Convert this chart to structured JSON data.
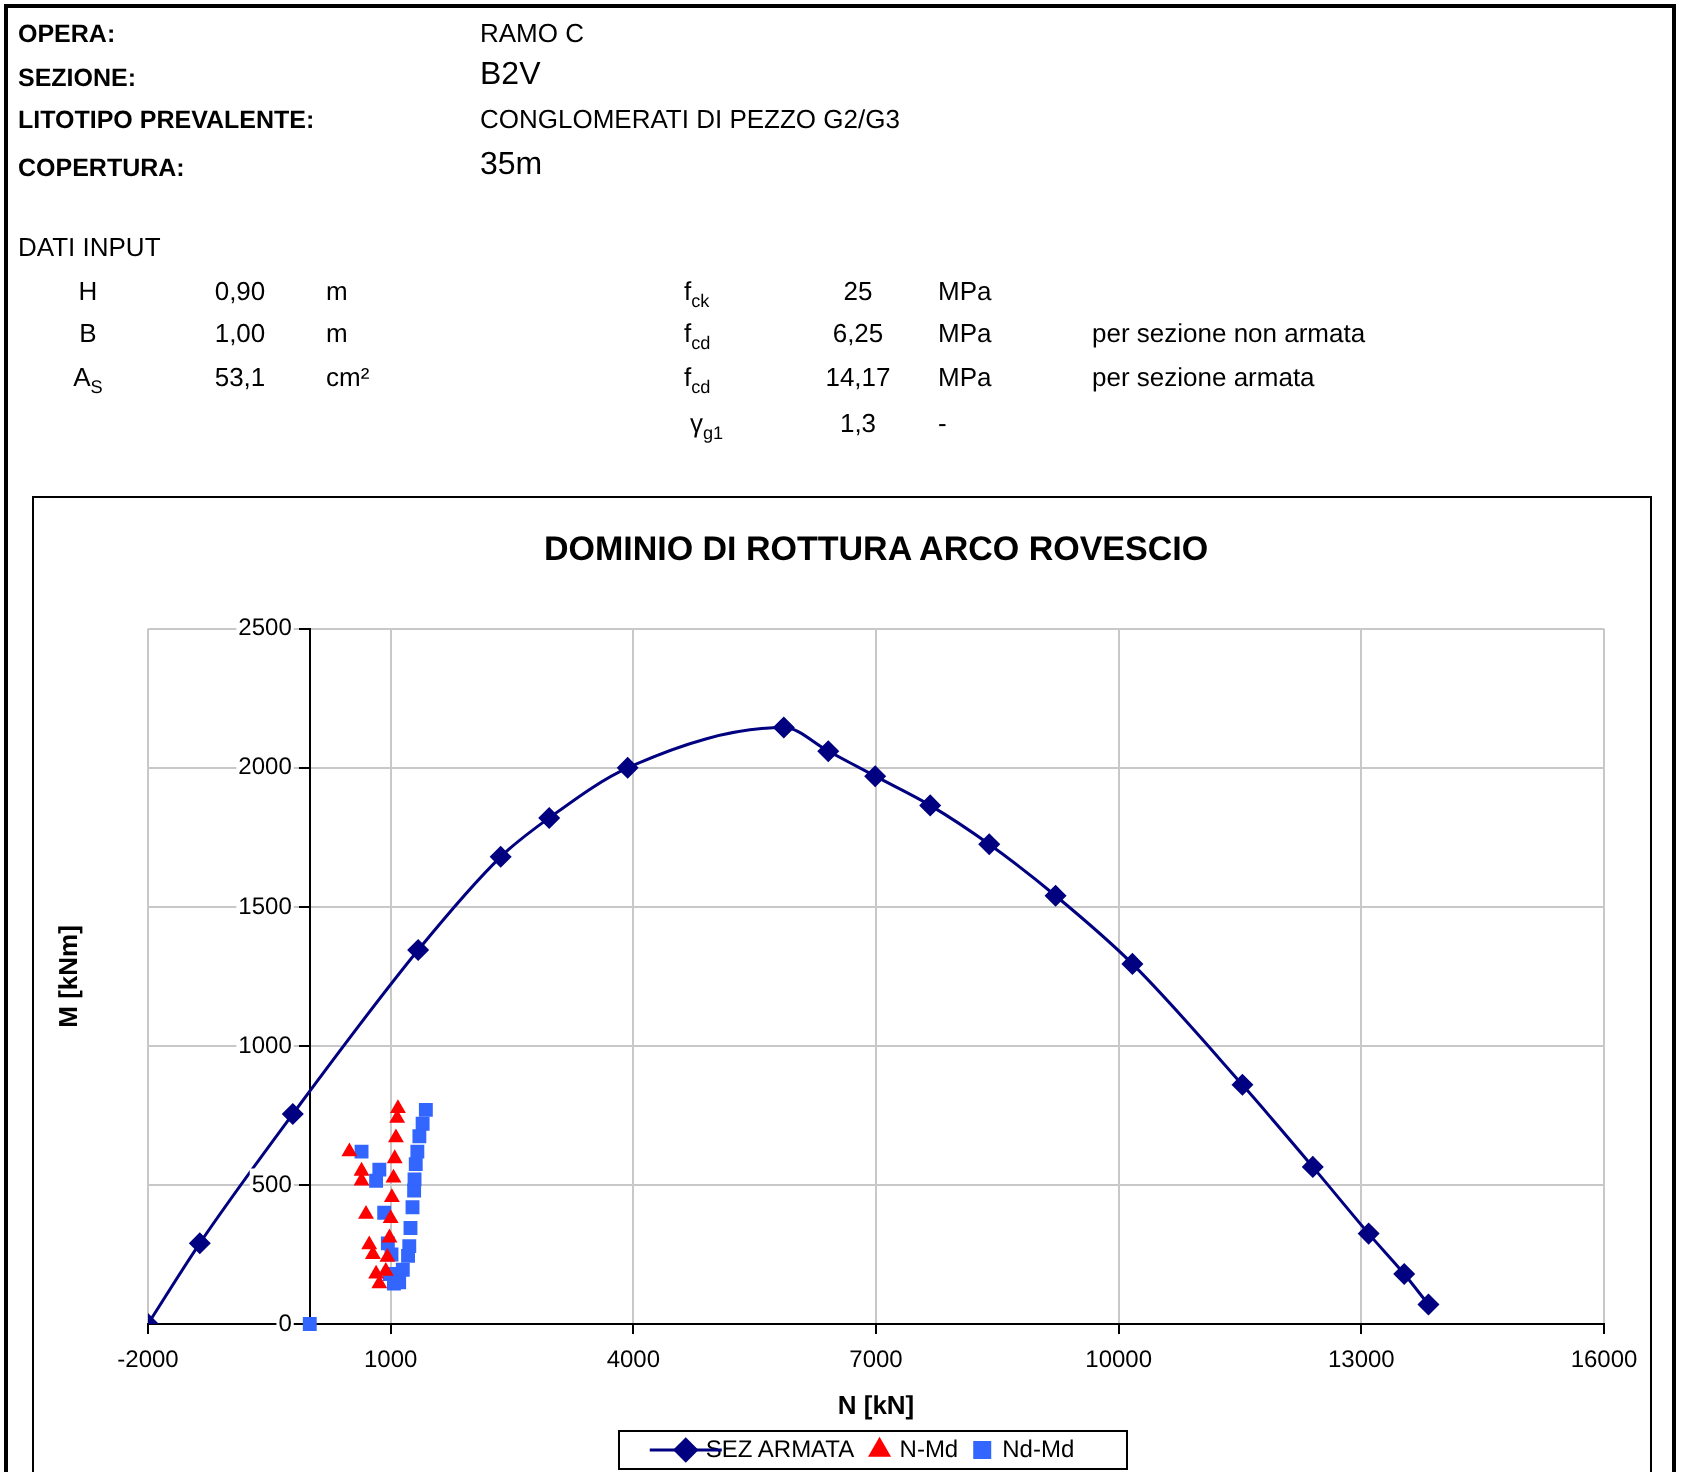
{
  "chart_data": {
    "type": "line",
    "title": "DOMINIO DI ROTTURA ARCO ROVESCIO",
    "xlabel": "N [kN]",
    "ylabel": "M [kNm]",
    "xlim": [
      -2000,
      16000
    ],
    "xticks": [
      -2000,
      1000,
      4000,
      7000,
      10000,
      13000,
      16000
    ],
    "ylim": [
      0,
      2500
    ],
    "yticks": [
      0,
      500,
      1000,
      1500,
      2000,
      2500
    ],
    "grid": true,
    "legend": "bottom",
    "series": [
      {
        "name": "SEZ ARMATA",
        "color": "#000080",
        "marker": "diamond",
        "x": [
          -2000,
          -1360,
          -210,
          1340,
          2360,
          2960,
          3930,
          5860,
          6410,
          6990,
          7670,
          8400,
          9220,
          10170,
          11530,
          12400,
          13090,
          13530,
          13830
        ],
        "values": [
          0,
          290,
          755,
          1345,
          1680,
          1820,
          2000,
          2145,
          2060,
          1970,
          1865,
          1725,
          1540,
          1295,
          860,
          565,
          325,
          180,
          70
        ]
      },
      {
        "name": "N-Md",
        "type": "scatter",
        "color": "#ff0000",
        "marker": "triangle",
        "x": [
          490,
          640,
          640,
          695,
          735,
          780,
          820,
          860,
          940,
          960,
          985,
          1000,
          1015,
          1035,
          1050,
          1065,
          1080,
          1090
        ],
        "values": [
          620,
          550,
          515,
          395,
          285,
          250,
          180,
          145,
          190,
          240,
          310,
          380,
          455,
          525,
          595,
          670,
          740,
          775
        ]
      },
      {
        "name": "Nd-Md",
        "type": "scatter",
        "color": "#3366ff",
        "marker": "square",
        "x": [
          0,
          640,
          860,
          820,
          920,
          965,
          1010,
          990,
          1040,
          1105,
          1150,
          1215,
          1230,
          1245,
          1270,
          1290,
          1295,
          1310,
          1330,
          1355,
          1395,
          1435
        ],
        "values": [
          0,
          620,
          555,
          515,
          400,
          290,
          250,
          180,
          145,
          150,
          195,
          245,
          280,
          345,
          420,
          480,
          520,
          575,
          620,
          675,
          720,
          770
        ]
      }
    ],
    "annotations": [
      "OPERA:",
      "RAMO C",
      "SEZIONE:",
      "B2V",
      "LITOTIPO PREVALENTE:",
      "CONGLOMERATI DI PEZZO G2/G3",
      "COPERTURA:",
      "35m",
      "DATI INPUT",
      "H",
      "0,90",
      "m",
      "f$_{ck}$",
      "25",
      "MPa",
      "B",
      "1,00",
      "m",
      "f$_{cd}$",
      "6,25",
      "MPa",
      "per sezione non armata",
      "A$_{S}$",
      "53,1",
      "cm²",
      "f$_{cd}$",
      "14,17",
      "MPa",
      "per sezione armata",
      "γ$_{g1}$",
      "1,3",
      "-"
    ]
  }
}
